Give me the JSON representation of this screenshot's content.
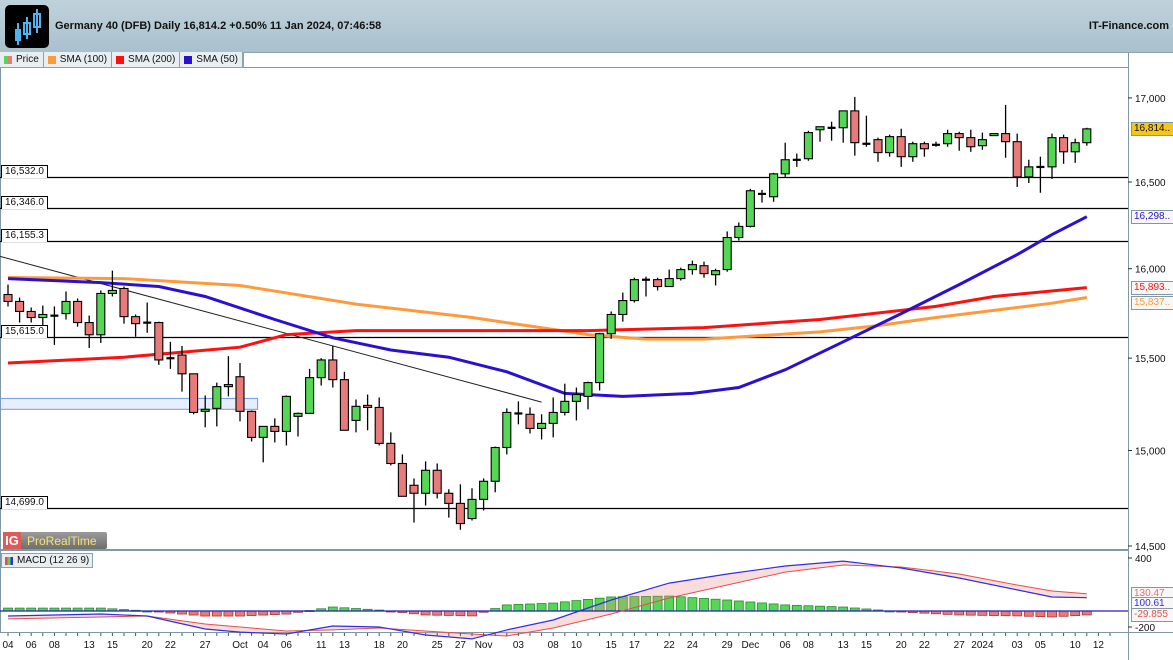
{
  "header": {
    "title": "Germany 40 (DFB) Daily 16,814.2 +0.50% 11 Jan 2024, 07:46:58",
    "site": "IT-Finance.com",
    "logo_icon": "candlestick-logo-icon"
  },
  "legend": [
    {
      "label": "Price",
      "color": "#e07070"
    },
    {
      "label": "SMA (100)",
      "color": "#ff9a3c"
    },
    {
      "label": "SMA (200)",
      "color": "#ff1010"
    },
    {
      "label": "SMA (50)",
      "color": "#2a10d0"
    }
  ],
  "branding": {
    "ig": "IG",
    "name": "ProRealTime"
  },
  "macd_label": "MACD (12 26 9)",
  "chart_data": {
    "type": "candlestick",
    "yscale": "log",
    "ylim": [
      14480,
      17230
    ],
    "colors": {
      "up": "#55d655",
      "down": "#e87a7a",
      "sma100": "#ff9a3c",
      "sma200": "#ff1010",
      "sma50": "#2a10d0",
      "macd": "#3030e0",
      "signal": "#e05050"
    },
    "yticks": [
      "17,000",
      "16,500",
      "16,000",
      "15,500",
      "15,000",
      "14,500"
    ],
    "ytick_values": [
      17000,
      16500,
      16000,
      15500,
      15000,
      14500
    ],
    "xticks": [
      {
        "label": "04",
        "i": 0
      },
      {
        "label": "06",
        "i": 2
      },
      {
        "label": "08",
        "i": 4
      },
      {
        "label": "13",
        "i": 7
      },
      {
        "label": "15",
        "i": 9
      },
      {
        "label": "20",
        "i": 12
      },
      {
        "label": "22",
        "i": 14
      },
      {
        "label": "27",
        "i": 17
      },
      {
        "label": "Oct",
        "i": 20
      },
      {
        "label": "04",
        "i": 22
      },
      {
        "label": "06",
        "i": 24
      },
      {
        "label": "11",
        "i": 27
      },
      {
        "label": "13",
        "i": 29
      },
      {
        "label": "18",
        "i": 32
      },
      {
        "label": "20",
        "i": 34
      },
      {
        "label": "25",
        "i": 37
      },
      {
        "label": "27",
        "i": 39
      },
      {
        "label": "Nov",
        "i": 41
      },
      {
        "label": "03",
        "i": 44
      },
      {
        "label": "08",
        "i": 47
      },
      {
        "label": "10",
        "i": 49
      },
      {
        "label": "15",
        "i": 52
      },
      {
        "label": "17",
        "i": 54
      },
      {
        "label": "22",
        "i": 57
      },
      {
        "label": "24",
        "i": 59
      },
      {
        "label": "29",
        "i": 62
      },
      {
        "label": "Dec",
        "i": 64
      },
      {
        "label": "06",
        "i": 67
      },
      {
        "label": "08",
        "i": 69
      },
      {
        "label": "13",
        "i": 72
      },
      {
        "label": "15",
        "i": 74
      },
      {
        "label": "20",
        "i": 77
      },
      {
        "label": "22",
        "i": 79
      },
      {
        "label": "27",
        "i": 82
      },
      {
        "label": "2024",
        "i": 84
      },
      {
        "label": "03",
        "i": 87
      },
      {
        "label": "05",
        "i": 89
      },
      {
        "label": "10",
        "i": 92
      },
      {
        "label": "12",
        "i": 94
      }
    ],
    "ohlc": [
      [
        15854,
        15910,
        15787,
        15815
      ],
      [
        15815,
        15837,
        15697,
        15759
      ],
      [
        15759,
        15781,
        15697,
        15725
      ],
      [
        15725,
        15792,
        15646,
        15742
      ],
      [
        15736,
        15787,
        15573,
        15736
      ],
      [
        15747,
        15871,
        15714,
        15815
      ],
      [
        15815,
        15832,
        15674,
        15697
      ],
      [
        15697,
        15736,
        15556,
        15629
      ],
      [
        15629,
        15877,
        15584,
        15860
      ],
      [
        15860,
        15989,
        15843,
        15877
      ],
      [
        15888,
        15899,
        15691,
        15730
      ],
      [
        15730,
        15742,
        15618,
        15691
      ],
      [
        15697,
        15809,
        15640,
        15697
      ],
      [
        15697,
        15702,
        15463,
        15490
      ],
      [
        15490,
        15590,
        15441,
        15500
      ],
      [
        15517,
        15567,
        15317,
        15414
      ],
      [
        15414,
        15414,
        15194,
        15204
      ],
      [
        15210,
        15296,
        15124,
        15221
      ],
      [
        15226,
        15366,
        15129,
        15344
      ],
      [
        15344,
        15511,
        15291,
        15355
      ],
      [
        15398,
        15473,
        15156,
        15210
      ],
      [
        15210,
        15215,
        15048,
        15070
      ],
      [
        15070,
        15129,
        14937,
        15129
      ],
      [
        15129,
        15172,
        15043,
        15102
      ],
      [
        15102,
        15296,
        15027,
        15291
      ],
      [
        15183,
        15204,
        15075,
        15199
      ],
      [
        15199,
        15441,
        15199,
        15393
      ],
      [
        15393,
        15500,
        15350,
        15490
      ],
      [
        15490,
        15567,
        15339,
        15382
      ],
      [
        15382,
        15425,
        15108,
        15108
      ],
      [
        15161,
        15274,
        15097,
        15237
      ],
      [
        15242,
        15301,
        15108,
        15231
      ],
      [
        15231,
        15285,
        15027,
        15038
      ],
      [
        15038,
        15097,
        14921,
        14931
      ],
      [
        14931,
        14979,
        14758,
        14758
      ],
      [
        14816,
        14852,
        14621,
        14774
      ],
      [
        14774,
        14942,
        14710,
        14895
      ],
      [
        14895,
        14931,
        14747,
        14774
      ],
      [
        14774,
        14795,
        14647,
        14721
      ],
      [
        14721,
        14821,
        14584,
        14616
      ],
      [
        14642,
        14800,
        14632,
        14742
      ],
      [
        14742,
        14852,
        14684,
        14837
      ],
      [
        14837,
        15021,
        14779,
        15016
      ],
      [
        15016,
        15226,
        14979,
        15204
      ],
      [
        15199,
        15264,
        15140,
        15199
      ],
      [
        15194,
        15231,
        15091,
        15118
      ],
      [
        15118,
        15194,
        15059,
        15145
      ],
      [
        15145,
        15285,
        15070,
        15204
      ],
      [
        15204,
        15360,
        15188,
        15264
      ],
      [
        15264,
        15339,
        15161,
        15301
      ],
      [
        15291,
        15371,
        15221,
        15366
      ],
      [
        15366,
        15640,
        15323,
        15635
      ],
      [
        15635,
        15759,
        15607,
        15742
      ],
      [
        15742,
        15865,
        15702,
        15820
      ],
      [
        15820,
        15949,
        15809,
        15938
      ],
      [
        15938,
        15955,
        15843,
        15938
      ],
      [
        15938,
        15949,
        15877,
        15899
      ],
      [
        15899,
        15995,
        15899,
        15944
      ],
      [
        15944,
        16006,
        15933,
        15995
      ],
      [
        15995,
        16046,
        15966,
        16023
      ],
      [
        16017,
        16040,
        15949,
        15972
      ],
      [
        15966,
        16000,
        15905,
        15989
      ],
      [
        15995,
        16213,
        15983,
        16178
      ],
      [
        16178,
        16265,
        16161,
        16242
      ],
      [
        16242,
        16460,
        16236,
        16449
      ],
      [
        16431,
        16454,
        16380,
        16420
      ],
      [
        16414,
        16554,
        16385,
        16548
      ],
      [
        16548,
        16732,
        16530,
        16631
      ],
      [
        16631,
        16667,
        16589,
        16631
      ],
      [
        16637,
        16803,
        16625,
        16792
      ],
      [
        16809,
        16827,
        16738,
        16827
      ],
      [
        16821,
        16857,
        16744,
        16821
      ],
      [
        16821,
        16922,
        16732,
        16922
      ],
      [
        16922,
        17006,
        16655,
        16732
      ],
      [
        16726,
        16893,
        16708,
        16726
      ],
      [
        16750,
        16762,
        16619,
        16673
      ],
      [
        16673,
        16780,
        16649,
        16768
      ],
      [
        16768,
        16815,
        16589,
        16649
      ],
      [
        16649,
        16738,
        16619,
        16726
      ],
      [
        16726,
        16738,
        16649,
        16696
      ],
      [
        16720,
        16738,
        16708,
        16720
      ],
      [
        16726,
        16809,
        16708,
        16786
      ],
      [
        16786,
        16797,
        16684,
        16762
      ],
      [
        16762,
        16809,
        16678,
        16708
      ],
      [
        16714,
        16792,
        16690,
        16750
      ],
      [
        16774,
        16786,
        16774,
        16786
      ],
      [
        16786,
        16958,
        16643,
        16738
      ],
      [
        16738,
        16786,
        16471,
        16530
      ],
      [
        16530,
        16631,
        16494,
        16589
      ],
      [
        16589,
        16649,
        16437,
        16589
      ],
      [
        16589,
        16786,
        16518,
        16762
      ],
      [
        16762,
        16780,
        16607,
        16678
      ],
      [
        16678,
        16756,
        16613,
        16732
      ],
      [
        16732,
        16821,
        16714,
        16814.2
      ]
    ],
    "sma100": [
      [
        0,
        15950
      ],
      [
        10,
        15944
      ],
      [
        20,
        15905
      ],
      [
        30,
        15800
      ],
      [
        40,
        15725
      ],
      [
        50,
        15630
      ],
      [
        55,
        15605
      ],
      [
        60,
        15605
      ],
      [
        65,
        15625
      ],
      [
        70,
        15645
      ],
      [
        75,
        15680
      ],
      [
        80,
        15725
      ],
      [
        85,
        15765
      ],
      [
        90,
        15805
      ],
      [
        93,
        15837
      ]
    ],
    "sma200": [
      [
        0,
        15473
      ],
      [
        10,
        15505
      ],
      [
        20,
        15560
      ],
      [
        24,
        15630
      ],
      [
        30,
        15652
      ],
      [
        40,
        15652
      ],
      [
        50,
        15652
      ],
      [
        60,
        15669
      ],
      [
        70,
        15714
      ],
      [
        80,
        15787
      ],
      [
        85,
        15843
      ],
      [
        93,
        15893
      ]
    ],
    "sma50": [
      [
        0,
        15944
      ],
      [
        8,
        15921
      ],
      [
        13,
        15899
      ],
      [
        17,
        15843
      ],
      [
        23,
        15714
      ],
      [
        28,
        15612
      ],
      [
        33,
        15545
      ],
      [
        38,
        15505
      ],
      [
        43,
        15425
      ],
      [
        48,
        15307
      ],
      [
        53,
        15291
      ],
      [
        59,
        15307
      ],
      [
        63,
        15339
      ],
      [
        67,
        15436
      ],
      [
        72,
        15590
      ],
      [
        77,
        15747
      ],
      [
        82,
        15910
      ],
      [
        87,
        16080
      ],
      [
        90,
        16195
      ],
      [
        93,
        16298
      ]
    ],
    "levels": [
      {
        "label": "16,532.0",
        "value": 16532
      },
      {
        "label": "16,346.0",
        "value": 16346
      },
      {
        "label": "16,155.3",
        "value": 16155.3
      },
      {
        "label": "15,615.0",
        "value": 15615
      },
      {
        "label": "14,699.0",
        "value": 14699
      }
    ],
    "trendline": [
      [
        0,
        16070
      ],
      [
        46,
        15260
      ]
    ],
    "zone": {
      "from_i": 0,
      "to_i": 21,
      "low": 15221,
      "high": 15280
    },
    "value_tags": [
      {
        "label": "16,814..",
        "value": 16814.2,
        "kind": "price"
      },
      {
        "label": "16,298..",
        "value": 16298,
        "kind": "sma50"
      },
      {
        "label": "15,893..",
        "value": 15893,
        "kind": "sma200"
      },
      {
        "label": "15,837..",
        "value": 15837,
        "kind": "sma100"
      }
    ],
    "macd": {
      "yticks": [
        {
          "label": "400",
          "value": 400
        },
        {
          "label": "-200",
          "value": -200
        }
      ],
      "macd_line": [
        [
          0,
          -38
        ],
        [
          8,
          -23
        ],
        [
          12,
          -38
        ],
        [
          17,
          -136
        ],
        [
          20,
          -159
        ],
        [
          24,
          -174
        ],
        [
          28,
          -113
        ],
        [
          32,
          -121
        ],
        [
          36,
          -181
        ],
        [
          40,
          -211
        ],
        [
          43,
          -143
        ],
        [
          47,
          -68
        ],
        [
          52,
          83
        ],
        [
          57,
          211
        ],
        [
          62,
          279
        ],
        [
          67,
          340
        ],
        [
          72,
          377
        ],
        [
          77,
          325
        ],
        [
          82,
          249
        ],
        [
          87,
          159
        ],
        [
          90,
          106
        ],
        [
          93,
          100.61
        ]
      ],
      "signal_line": [
        [
          0,
          -60
        ],
        [
          8,
          -45
        ],
        [
          12,
          -38
        ],
        [
          17,
          -98
        ],
        [
          20,
          -121
        ],
        [
          24,
          -151
        ],
        [
          28,
          -143
        ],
        [
          32,
          -128
        ],
        [
          36,
          -151
        ],
        [
          40,
          -174
        ],
        [
          43,
          -189
        ],
        [
          47,
          -128
        ],
        [
          52,
          -23
        ],
        [
          57,
          98
        ],
        [
          62,
          196
        ],
        [
          67,
          294
        ],
        [
          72,
          347
        ],
        [
          77,
          332
        ],
        [
          82,
          279
        ],
        [
          87,
          196
        ],
        [
          90,
          151
        ],
        [
          93,
          130.47
        ]
      ],
      "value_tags": [
        {
          "label": "130.47",
          "value": 130.47,
          "kind": "signal"
        },
        {
          "label": "100.61",
          "value": 100.61,
          "kind": "macd"
        },
        {
          "label": "-29.855",
          "value": -29.855,
          "kind": "hist"
        }
      ]
    }
  }
}
